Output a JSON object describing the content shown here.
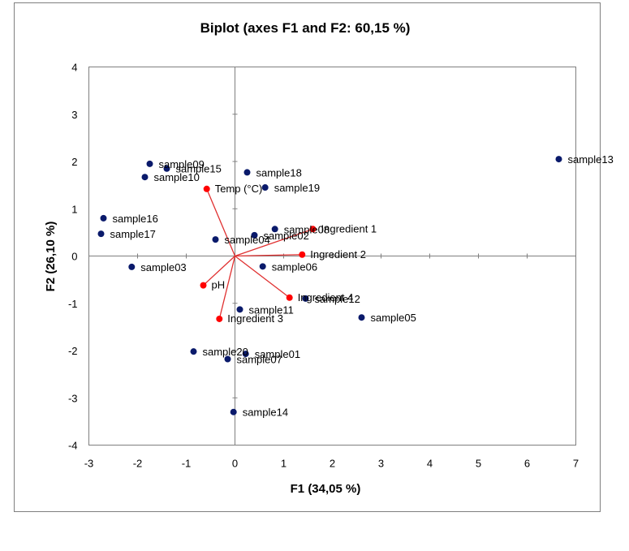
{
  "chart_data": {
    "type": "scatter",
    "title": "Biplot (axes F1 and  F2: 60,15 %)",
    "xlabel": "F1 (34,05 %)",
    "ylabel": "F2 (26,10 %)",
    "xlim": [
      -3,
      7
    ],
    "ylim": [
      -4,
      4
    ],
    "xticks": [
      -3,
      -2,
      -1,
      0,
      1,
      2,
      3,
      4,
      5,
      6,
      7
    ],
    "yticks": [
      -4,
      -3,
      -2,
      -1,
      0,
      1,
      2,
      3,
      4
    ],
    "grid": false,
    "legend": "none",
    "colors": {
      "observations": "#0a1a6b",
      "variables": "#ff0000",
      "arrows": "#e03030",
      "axis": "#7f7f7f"
    },
    "observations": [
      {
        "name": "sample01",
        "x": 0.22,
        "y": -2.07
      },
      {
        "name": "sample02",
        "x": 0.4,
        "y": 0.44
      },
      {
        "name": "sample03",
        "x": -2.12,
        "y": -0.23
      },
      {
        "name": "sample04",
        "x": -0.4,
        "y": 0.35
      },
      {
        "name": "sample05",
        "x": 2.6,
        "y": -1.3
      },
      {
        "name": "sample06",
        "x": 0.57,
        "y": -0.22
      },
      {
        "name": "sample07",
        "x": -0.15,
        "y": -2.18
      },
      {
        "name": "sample08",
        "x": 0.82,
        "y": 0.57
      },
      {
        "name": "sample09",
        "x": -1.75,
        "y": 1.95
      },
      {
        "name": "sample10",
        "x": -1.85,
        "y": 1.67
      },
      {
        "name": "sample11",
        "x": 0.1,
        "y": -1.13
      },
      {
        "name": "sample12",
        "x": 1.45,
        "y": -0.9
      },
      {
        "name": "sample13",
        "x": 6.65,
        "y": 2.05
      },
      {
        "name": "sample14",
        "x": -0.03,
        "y": -3.3
      },
      {
        "name": "sample15",
        "x": -1.4,
        "y": 1.85
      },
      {
        "name": "sample16",
        "x": -2.7,
        "y": 0.8
      },
      {
        "name": "sample17",
        "x": -2.75,
        "y": 0.47
      },
      {
        "name": "sample18",
        "x": 0.25,
        "y": 1.77
      },
      {
        "name": "sample19",
        "x": 0.62,
        "y": 1.45
      },
      {
        "name": "sample20",
        "x": -0.85,
        "y": -2.02
      }
    ],
    "variables": [
      {
        "name": "Temp (°C)",
        "x": -0.58,
        "y": 1.42
      },
      {
        "name": "Ingredient  1",
        "x": 1.6,
        "y": 0.57
      },
      {
        "name": "Ingredient 2",
        "x": 1.38,
        "y": 0.03
      },
      {
        "name": "pH",
        "x": -0.65,
        "y": -0.62
      },
      {
        "name": "Ingredient 4",
        "x": 1.12,
        "y": -0.88
      },
      {
        "name": "Ingredient  3",
        "x": -0.32,
        "y": -1.33
      }
    ]
  }
}
